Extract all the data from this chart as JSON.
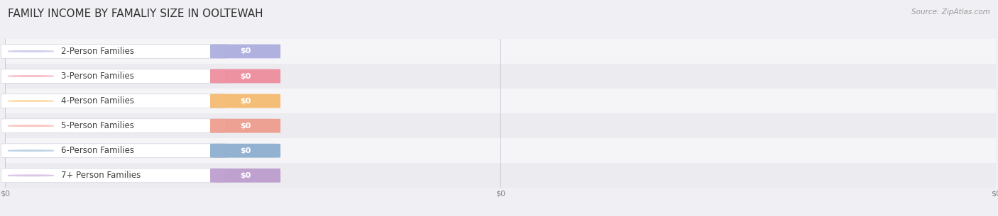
{
  "title": "FAMILY INCOME BY FAMALIY SIZE IN OOLTEWAH",
  "source": "Source: ZipAtlas.com",
  "categories": [
    "2-Person Families",
    "3-Person Families",
    "4-Person Families",
    "5-Person Families",
    "6-Person Families",
    "7+ Person Families"
  ],
  "values": [
    0,
    0,
    0,
    0,
    0,
    0
  ],
  "bar_colors": [
    "#aaaadd",
    "#ee8899",
    "#f5b86a",
    "#ee9988",
    "#88aacc",
    "#bb99cc"
  ],
  "bar_colors_light": [
    "#d0d0ee",
    "#f8c0cc",
    "#fcdcaa",
    "#f8c8c0",
    "#c0d4e8",
    "#ddc8e8"
  ],
  "row_bg_colors": [
    "#f5f5f8",
    "#ebebf0"
  ],
  "bg_color": "#f0f0f4",
  "title_fontsize": 11,
  "label_fontsize": 8.5,
  "value_fontsize": 8,
  "source_fontsize": 7.5,
  "grid_color": "#c8c8d8",
  "x_tick_labels": [
    "$0",
    "$0",
    "$0"
  ],
  "x_tick_positions": [
    0.0,
    0.5,
    1.0
  ]
}
